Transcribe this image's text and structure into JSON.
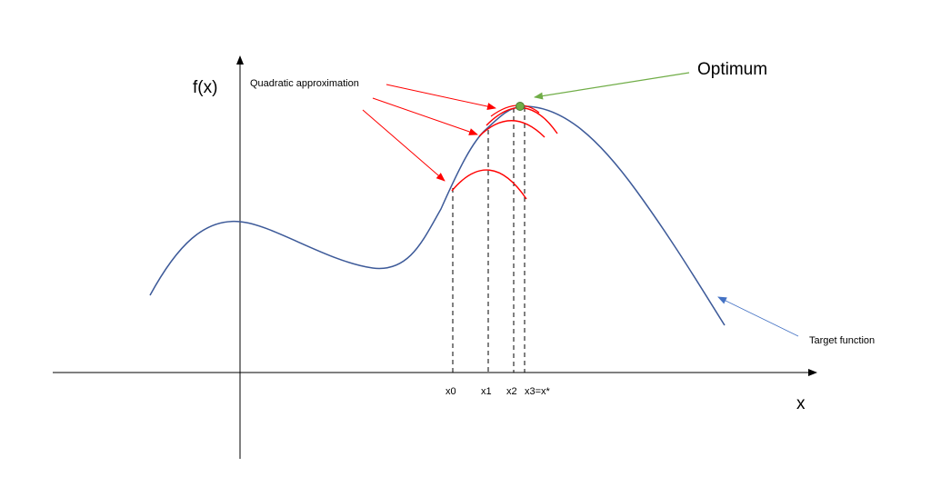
{
  "labels": {
    "y_axis": "f(x)",
    "x_axis": "x",
    "optimum": "Optimum",
    "quadratic_approximation": "Quadratic approximation",
    "target_function": "Target function",
    "ticks": [
      "x0",
      "x1",
      "x2",
      "x3=x*"
    ]
  },
  "colors": {
    "axis": "#000000",
    "target_function": "#3d5a99",
    "approximation": "#ff0000",
    "optimum_point": "#70ad47",
    "optimum_arrow": "#70ad47",
    "target_arrow": "#4472c4",
    "dashed_lines": "#000000"
  }
}
